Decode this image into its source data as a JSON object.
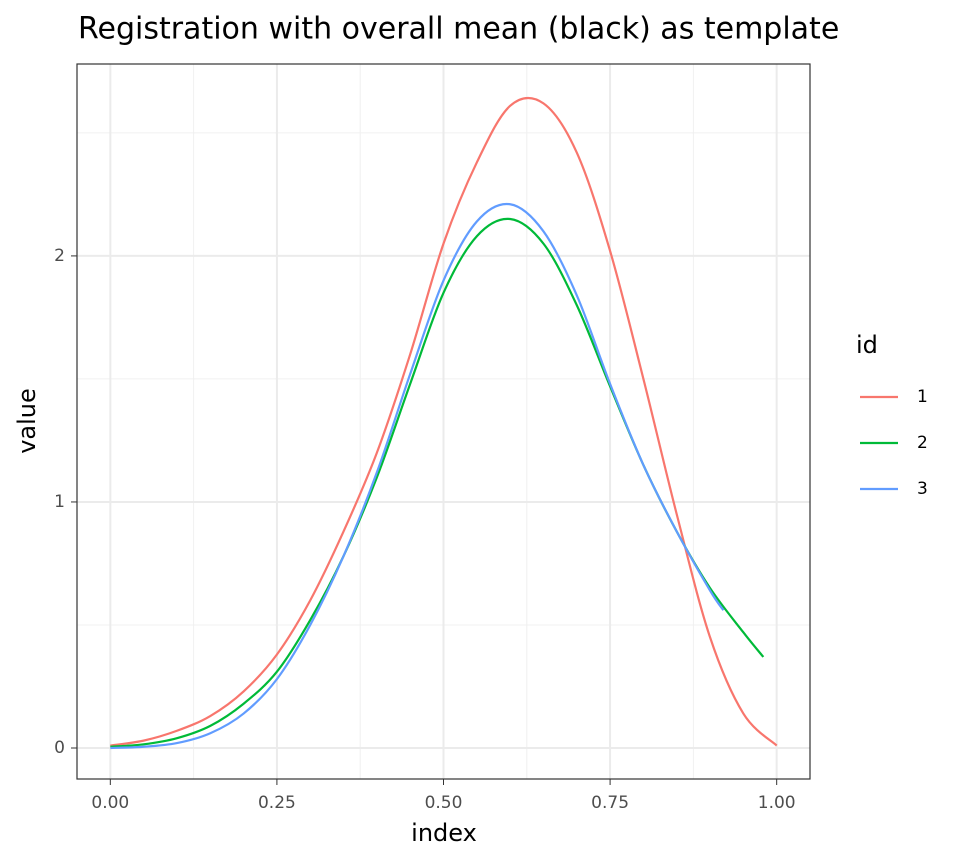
{
  "chart_data": {
    "type": "line",
    "title": "Registration with overall mean (black) as template",
    "x_label": "index",
    "y_label": "value",
    "xlim": [
      -0.05,
      1.05
    ],
    "ylim": [
      -0.126,
      2.78
    ],
    "xticks": [
      {
        "value": 0,
        "label": "0.00"
      },
      {
        "value": 0.25,
        "label": "0.25"
      },
      {
        "value": 0.5,
        "label": "0.50"
      },
      {
        "value": 0.75,
        "label": "0.75"
      },
      {
        "value": 1,
        "label": "1.00"
      }
    ],
    "yticks": [
      0,
      1,
      2
    ],
    "grid": true,
    "legend_title": "id",
    "series": [
      {
        "name": "1",
        "color": "#f8766d",
        "x": [
          0,
          0.05,
          0.1,
          0.15,
          0.2,
          0.25,
          0.3,
          0.35,
          0.4,
          0.45,
          0.5,
          0.55,
          0.6,
          0.65,
          0.7,
          0.75,
          0.8,
          0.85,
          0.9,
          0.95,
          1.0
        ],
        "values": [
          0.01,
          0.03,
          0.07,
          0.13,
          0.23,
          0.38,
          0.6,
          0.88,
          1.2,
          1.6,
          2.05,
          2.38,
          2.61,
          2.62,
          2.42,
          2.02,
          1.5,
          0.95,
          0.45,
          0.14,
          0.01
        ]
      },
      {
        "name": "2",
        "color": "#00ba38",
        "x": [
          0,
          0.05,
          0.1,
          0.15,
          0.2,
          0.25,
          0.3,
          0.35,
          0.4,
          0.45,
          0.5,
          0.55,
          0.6,
          0.65,
          0.7,
          0.75,
          0.8,
          0.85,
          0.9,
          0.95,
          0.98
        ],
        "values": [
          0.005,
          0.015,
          0.04,
          0.09,
          0.18,
          0.31,
          0.52,
          0.78,
          1.1,
          1.48,
          1.85,
          2.08,
          2.15,
          2.05,
          1.8,
          1.47,
          1.15,
          0.88,
          0.65,
          0.47,
          0.37
        ]
      },
      {
        "name": "3",
        "color": "#619cff",
        "x": [
          0,
          0.05,
          0.1,
          0.15,
          0.2,
          0.25,
          0.3,
          0.35,
          0.4,
          0.45,
          0.5,
          0.55,
          0.6,
          0.65,
          0.7,
          0.75,
          0.8,
          0.85,
          0.9,
          0.92
        ],
        "values": [
          0.0,
          0.005,
          0.02,
          0.06,
          0.14,
          0.28,
          0.5,
          0.78,
          1.12,
          1.52,
          1.9,
          2.14,
          2.21,
          2.1,
          1.84,
          1.48,
          1.15,
          0.88,
          0.64,
          0.56
        ]
      }
    ]
  }
}
